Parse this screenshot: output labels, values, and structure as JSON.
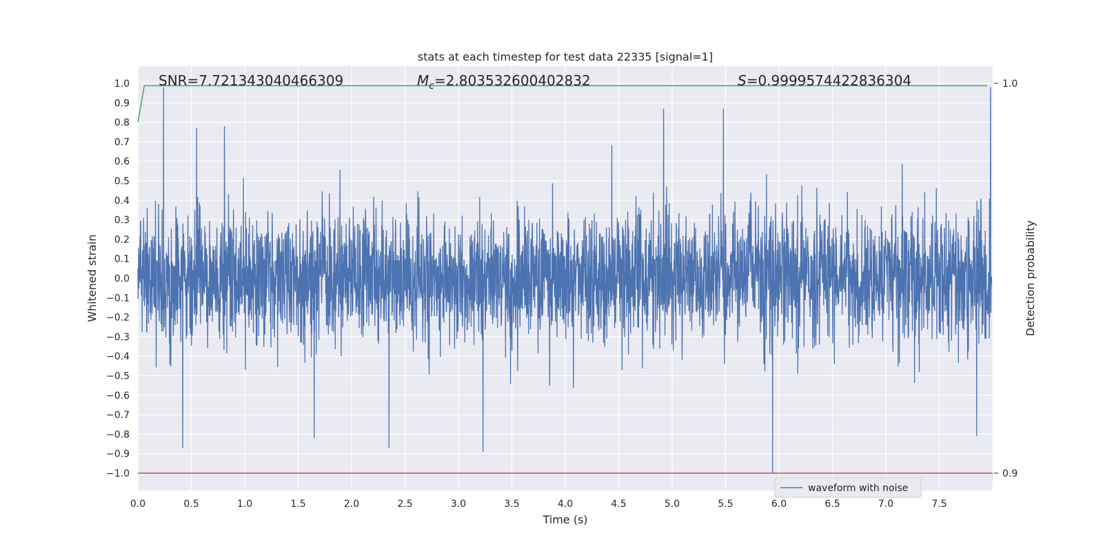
{
  "chart_data": {
    "type": "line",
    "title": "stats at each timestep for test data 22335 [signal=1]",
    "xlabel": "Time (s)",
    "ylabel": "Whitened strain",
    "y2label": "Detection probability",
    "xlim": [
      0.0,
      8.0
    ],
    "ylim": [
      -1.1,
      1.1
    ],
    "y2lim": [
      0.9,
      1.0
    ],
    "grid": true,
    "legend_placement": "lower center-right",
    "x_ticks": [
      "0.0",
      "0.5",
      "1.0",
      "1.5",
      "2.0",
      "2.5",
      "3.0",
      "3.5",
      "4.0",
      "4.5",
      "5.0",
      "5.5",
      "6.0",
      "6.5",
      "7.0",
      "7.5"
    ],
    "y_ticks": [
      "−1.0",
      "−0.9",
      "−0.8",
      "−0.7",
      "−0.6",
      "−0.5",
      "−0.4",
      "−0.3",
      "−0.2",
      "−0.1",
      "0.0",
      "0.1",
      "0.2",
      "0.3",
      "0.4",
      "0.5",
      "0.6",
      "0.7",
      "0.8",
      "0.9",
      "1.0"
    ],
    "y2_ticks": [
      "0.9",
      "1.0"
    ],
    "annotations": {
      "snr": "SNR=7.721343040466309",
      "mc_symbol": "M",
      "mc_sub": "c",
      "mc_value": "=2.803532600402832",
      "s_symbol": "S",
      "s_value": "=0.9999574422836304"
    },
    "series": [
      {
        "name": "waveform with noise",
        "color": "#4c72b0",
        "kind": "noise",
        "x_range": [
          0.0,
          7.99
        ],
        "typical_amplitude": 0.4,
        "spikes": [
          {
            "x": 0.24,
            "y": 0.98
          },
          {
            "x": 0.55,
            "y": 0.77
          },
          {
            "x": 0.81,
            "y": 0.78
          },
          {
            "x": 4.92,
            "y": 0.87
          },
          {
            "x": 5.48,
            "y": 0.87
          },
          {
            "x": 7.98,
            "y": 0.98
          },
          {
            "x": 0.42,
            "y": -0.87
          },
          {
            "x": 1.65,
            "y": -0.82
          },
          {
            "x": 2.35,
            "y": -0.87
          },
          {
            "x": 3.23,
            "y": -0.89
          },
          {
            "x": 5.94,
            "y": -1.0
          },
          {
            "x": 7.85,
            "y": -0.81
          }
        ]
      },
      {
        "name": "detection probability",
        "color": "#55a868",
        "axis": "right",
        "x": [
          0.0,
          0.06,
          7.95
        ],
        "y": [
          0.99,
          0.9994,
          0.9994
        ]
      },
      {
        "name": "threshold",
        "color": "#c44e52",
        "axis": "left",
        "x": [
          0.0,
          8.0
        ],
        "y": [
          -1.0,
          -1.0
        ]
      }
    ],
    "legend": [
      {
        "label": "waveform with noise",
        "color": "#4c72b0"
      }
    ]
  }
}
